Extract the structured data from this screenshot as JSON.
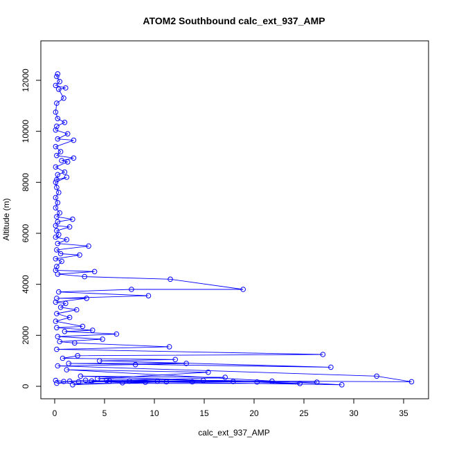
{
  "chart_data": {
    "type": "line",
    "title": "ATOM2 Southbound calc_ext_937_AMP",
    "xlabel": "calc_ext_937_AMP",
    "ylabel": "Altitude (m)",
    "xlim": [
      0,
      36
    ],
    "ylim": [
      0,
      12300
    ],
    "x_ticks": [
      0,
      5,
      10,
      15,
      20,
      25,
      30,
      35
    ],
    "y_ticks": [
      0,
      2000,
      4000,
      6000,
      8000,
      10000,
      12000
    ],
    "grid": false,
    "legend": "none",
    "color": "#0000ff",
    "markers": "open-circle",
    "series": [
      {
        "points": [
          [
            0.3,
            12250
          ],
          [
            0.2,
            12150
          ],
          [
            0.5,
            11950
          ],
          [
            0.1,
            11800
          ],
          [
            1.1,
            11700
          ],
          [
            0.4,
            11650
          ],
          [
            0.9,
            11300
          ],
          [
            0.2,
            11100
          ],
          [
            0.1,
            10750
          ],
          [
            0.3,
            10500
          ],
          [
            1.0,
            10350
          ],
          [
            0.2,
            10200
          ],
          [
            0.1,
            10050
          ],
          [
            1.3,
            9900
          ],
          [
            0.3,
            9700
          ],
          [
            1.9,
            9650
          ],
          [
            0.1,
            9400
          ],
          [
            0.6,
            9200
          ],
          [
            0.2,
            9050
          ],
          [
            1.9,
            8950
          ],
          [
            0.7,
            8850
          ],
          [
            1.3,
            8800
          ],
          [
            0.1,
            8600
          ],
          [
            1.0,
            8400
          ],
          [
            0.3,
            8300
          ],
          [
            0.2,
            8100
          ],
          [
            1.2,
            8200
          ],
          [
            0.1,
            8000
          ],
          [
            0.2,
            7800
          ],
          [
            0.4,
            7600
          ],
          [
            0.1,
            7400
          ],
          [
            0.3,
            7200
          ],
          [
            0.1,
            7000
          ],
          [
            0.5,
            6800
          ],
          [
            0.2,
            6650
          ],
          [
            1.8,
            6550
          ],
          [
            0.3,
            6450
          ],
          [
            0.1,
            6300
          ],
          [
            1.5,
            6250
          ],
          [
            0.2,
            6100
          ],
          [
            0.4,
            5950
          ],
          [
            0.1,
            5850
          ],
          [
            1.2,
            5750
          ],
          [
            0.3,
            5600
          ],
          [
            3.4,
            5500
          ],
          [
            0.2,
            5350
          ],
          [
            0.6,
            5200
          ],
          [
            2.5,
            5150
          ],
          [
            0.1,
            5000
          ],
          [
            0.7,
            4900
          ],
          [
            0.2,
            4700
          ],
          [
            0.1,
            4550
          ],
          [
            4.0,
            4500
          ],
          [
            0.3,
            4400
          ],
          [
            3.0,
            4300
          ],
          [
            11.6,
            4200
          ],
          [
            18.9,
            3800
          ],
          [
            7.7,
            3800
          ],
          [
            0.4,
            3700
          ],
          [
            9.4,
            3550
          ],
          [
            0.2,
            3450
          ],
          [
            3.2,
            3450
          ],
          [
            0.1,
            3300
          ],
          [
            1.1,
            3250
          ],
          [
            0.6,
            3100
          ],
          [
            2.2,
            3000
          ],
          [
            0.2,
            2850
          ],
          [
            1.5,
            2700
          ],
          [
            0.1,
            2550
          ],
          [
            2.8,
            2350
          ],
          [
            0.2,
            2300
          ],
          [
            3.8,
            2200
          ],
          [
            1.0,
            2150
          ],
          [
            6.2,
            2050
          ],
          [
            0.3,
            1950
          ],
          [
            4.8,
            1850
          ],
          [
            0.5,
            1750
          ],
          [
            2.0,
            1700
          ],
          [
            11.5,
            1550
          ],
          [
            0.2,
            1450
          ],
          [
            26.9,
            1250
          ],
          [
            2.3,
            1200
          ],
          [
            0.8,
            1100
          ],
          [
            12.1,
            1050
          ],
          [
            4.5,
            1000
          ],
          [
            27.7,
            750
          ],
          [
            1.4,
            900
          ],
          [
            13.2,
            900
          ],
          [
            8.1,
            850
          ],
          [
            0.3,
            800
          ],
          [
            32.3,
            400
          ],
          [
            35.8,
            180
          ],
          [
            21.8,
            200
          ],
          [
            4.3,
            300
          ],
          [
            15.4,
            550
          ],
          [
            1.2,
            650
          ],
          [
            28.8,
            60
          ],
          [
            5.5,
            200
          ],
          [
            17.1,
            350
          ],
          [
            2.6,
            400
          ],
          [
            24.6,
            110
          ],
          [
            0.2,
            120
          ],
          [
            1.5,
            200
          ],
          [
            3.1,
            240
          ],
          [
            9.1,
            160
          ],
          [
            7.5,
            200
          ],
          [
            13.8,
            180
          ],
          [
            20.3,
            170
          ],
          [
            26.3,
            160
          ],
          [
            5.2,
            230
          ],
          [
            1.8,
            60
          ],
          [
            11.2,
            180
          ],
          [
            6.8,
            140
          ],
          [
            3.7,
            210
          ],
          [
            10.3,
            200
          ],
          [
            14.9,
            230
          ],
          [
            17.9,
            190
          ],
          [
            2.4,
            180
          ],
          [
            0.9,
            190
          ],
          [
            0.1,
            230
          ]
        ]
      }
    ]
  }
}
